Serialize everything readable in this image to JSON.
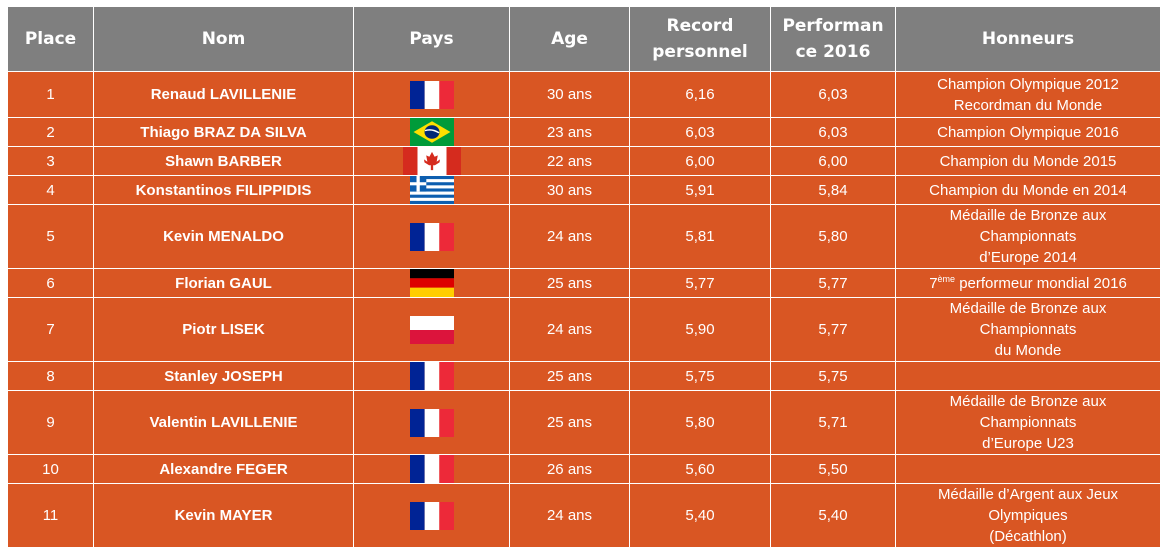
{
  "table": {
    "headers": {
      "place": "Place",
      "nom": "Nom",
      "pays": "Pays",
      "age": "Age",
      "record_line1": "Record",
      "record_line2": "personnel",
      "perf_line1": "Performan",
      "perf_line2": "ce 2016",
      "honneurs": "Honneurs"
    },
    "rows": [
      {
        "place": "1",
        "name": "Renaud LAVILLENIE",
        "flag": "france-flag-icon",
        "age": "30 ans",
        "record": "6,16",
        "performance": "6,03",
        "honors1": "Champion Olympique 2012",
        "honors2": "Recordman du Monde"
      },
      {
        "place": "2",
        "name": "Thiago BRAZ DA SILVA",
        "flag": "brazil-flag-icon",
        "age": "23 ans",
        "record": "6,03",
        "performance": "6,03",
        "honors1": "Champion Olympique 2016",
        "honors2": ""
      },
      {
        "place": "3",
        "name": "Shawn BARBER",
        "flag": "canada-flag-icon",
        "age": "22 ans",
        "record": "6,00",
        "performance": "6,00",
        "honors1": "Champion du Monde 2015",
        "honors2": ""
      },
      {
        "place": "4",
        "name": "Konstantinos FILIPPIDIS",
        "flag": "greece-flag-icon",
        "age": "30 ans",
        "record": "5,91",
        "performance": "5,84",
        "honors1": "Champion du Monde en 2014",
        "honors2": ""
      },
      {
        "place": "5",
        "name": "Kevin MENALDO",
        "flag": "france-flag-icon",
        "age": "24 ans",
        "record": "5,81",
        "performance": "5,80",
        "honors1": "Médaille de Bronze aux Championnats",
        "honors2": "d’Europe 2014"
      },
      {
        "place": "6",
        "name": "Florian GAUL",
        "flag": "germany-flag-icon",
        "age": "25 ans",
        "record": "5,77",
        "performance": "5,77",
        "honors_num": "7",
        "honors_sup": "ème",
        "honors_rest": " performeur mondial 2016"
      },
      {
        "place": "7",
        "name": "Piotr LISEK",
        "flag": "poland-flag-icon",
        "age": "24 ans",
        "record": "5,90",
        "performance": "5,77",
        "honors1": "Médaille de Bronze aux Championnats",
        "honors2": "du Monde"
      },
      {
        "place": "8",
        "name": "Stanley JOSEPH",
        "flag": "france-flag-icon",
        "age": "25 ans",
        "record": "5,75",
        "performance": "5,75",
        "honors1": "",
        "honors2": ""
      },
      {
        "place": "9",
        "name": "Valentin LAVILLENIE",
        "flag": "france-flag-icon",
        "age": "25 ans",
        "record": "5,80",
        "performance": "5,71",
        "honors1": "Médaille de Bronze aux Championnats",
        "honors2": "d’Europe U23"
      },
      {
        "place": "10",
        "name": "Alexandre FEGER",
        "flag": "france-flag-icon",
        "age": "26 ans",
        "record": "5,60",
        "performance": "5,50",
        "honors1": "",
        "honors2": ""
      },
      {
        "place": "11",
        "name": "Kevin MAYER",
        "flag": "france-flag-icon",
        "age": "24 ans",
        "record": "5,40",
        "performance": "5,40",
        "honors1": "Médaille d’Argent aux Jeux Olympiques",
        "honors2": "(Décathlon)"
      }
    ]
  },
  "colors": {
    "header_bg": "#7f7f7f",
    "row_bg": "#d95623",
    "text": "#ffffff"
  }
}
